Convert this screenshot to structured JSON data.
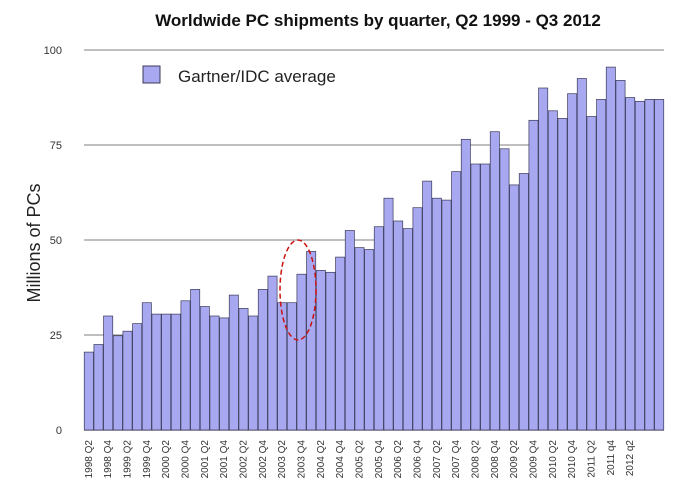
{
  "chart_data": {
    "type": "bar",
    "title": "Worldwide PC shipments by quarter, Q2 1999 - Q3 2012",
    "ylabel": "Millions of PCs",
    "xlabel": "",
    "ylim": [
      0,
      100
    ],
    "yticks": [
      0,
      25,
      50,
      75,
      100
    ],
    "grid": true,
    "legend": {
      "placement": "top-left",
      "entries": [
        "Gartner/IDC average"
      ]
    },
    "series": [
      {
        "name": "Gartner/IDC average",
        "color": "#a8a8f0",
        "values": [
          20.5,
          22.5,
          30,
          24.8,
          26,
          28,
          33.5,
          30.5,
          30.5,
          30.5,
          34,
          37,
          32.5,
          30,
          29.5,
          35.5,
          32,
          30,
          37,
          40.5,
          33.5,
          33.5,
          41,
          47,
          42,
          41.5,
          45.5,
          52.5,
          48,
          47.5,
          53.5,
          61,
          55,
          53,
          58.5,
          65.5,
          61,
          60.5,
          68,
          76.5,
          70,
          70,
          78.5,
          74,
          64.5,
          67.5,
          81.5,
          90,
          84,
          82,
          88.5,
          92.5,
          82.5,
          87,
          95.5,
          92,
          87.5,
          86.5,
          87,
          87
        ]
      }
    ],
    "x_tick_labels": [
      "1998 Q2",
      "1998 Q4",
      "1999 Q2",
      "1999 Q4",
      "2000 Q2",
      "2000 Q4",
      "2001 Q2",
      "2001 Q4",
      "2002 Q2",
      "2002 Q4",
      "2003 Q2",
      "2003 Q4",
      "2004 Q2",
      "2004 Q4",
      "2005 Q2",
      "2005 Q4",
      "2006 Q2",
      "2006 Q4",
      "2007 Q2",
      "2007 Q4",
      "2008 Q2",
      "2008 Q4",
      "2009 Q2",
      "2009 Q4",
      "2010 Q2",
      "2010 Q4",
      "2011 Q2",
      "2011 q4",
      "2012 q2"
    ],
    "annotation": {
      "type": "dashed-ellipse",
      "color": "#cc1111",
      "around_x_labels": [
        "2003 Q2"
      ]
    },
    "colors": {
      "bar_fill": "#a8a8f0",
      "bar_stroke": "#3a3a5a",
      "grid": "#555555",
      "annotation": "#cc1111"
    }
  }
}
